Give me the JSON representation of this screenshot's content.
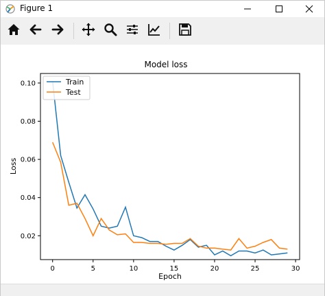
{
  "window": {
    "title": "Figure 1",
    "icon": "matplotlib-icon",
    "controls": [
      "minimize-icon",
      "maximize-icon",
      "close-icon"
    ]
  },
  "toolbar": {
    "tools": [
      {
        "name": "home-button",
        "icon": "home-icon"
      },
      {
        "name": "back-button",
        "icon": "arrow-left-icon"
      },
      {
        "name": "forward-button",
        "icon": "arrow-right-icon"
      },
      {
        "name": "pan-button",
        "icon": "move-icon"
      },
      {
        "name": "zoom-button",
        "icon": "magnifier-icon"
      },
      {
        "name": "subplots-button",
        "icon": "sliders-icon"
      },
      {
        "name": "edit-axis-button",
        "icon": "chart-line-icon"
      },
      {
        "name": "save-button",
        "icon": "floppy-disk-icon"
      }
    ]
  },
  "chart_data": {
    "type": "line",
    "title": "Model loss",
    "xlabel": "Epoch",
    "ylabel": "Loss",
    "xlim": [
      -1.5,
      30.5
    ],
    "ylim": [
      0.0075,
      0.105
    ],
    "xticks": [
      "0",
      "5",
      "10",
      "15",
      "20",
      "25",
      "30"
    ],
    "yticks": [
      "0.02",
      "0.04",
      "0.06",
      "0.08",
      "0.10"
    ],
    "xtick_values": [
      0,
      5,
      10,
      15,
      20,
      25,
      30
    ],
    "ytick_values": [
      0.02,
      0.04,
      0.06,
      0.08,
      0.1
    ],
    "legend_position": "top-left",
    "grid": false,
    "x": [
      0,
      1,
      2,
      3,
      4,
      5,
      6,
      7,
      8,
      9,
      10,
      11,
      12,
      13,
      14,
      15,
      16,
      17,
      18,
      19,
      20,
      21,
      22,
      23,
      24,
      25,
      26,
      27,
      28,
      29
    ],
    "series": [
      {
        "name": "Train",
        "color": "#1f77b4",
        "values": [
          0.101,
          0.062,
          0.048,
          0.0345,
          0.0415,
          0.034,
          0.025,
          0.024,
          0.025,
          0.035,
          0.02,
          0.019,
          0.017,
          0.017,
          0.0145,
          0.0125,
          0.015,
          0.018,
          0.014,
          0.015,
          0.01,
          0.012,
          0.0095,
          0.012,
          0.012,
          0.011,
          0.0125,
          0.01,
          0.0105,
          0.011
        ]
      },
      {
        "name": "Test",
        "color": "#ff7f0e",
        "values": [
          0.069,
          0.0585,
          0.036,
          0.037,
          0.029,
          0.02,
          0.029,
          0.023,
          0.0205,
          0.021,
          0.0165,
          0.0165,
          0.016,
          0.016,
          0.0155,
          0.016,
          0.016,
          0.0185,
          0.0145,
          0.0135,
          0.0135,
          0.013,
          0.0125,
          0.0185,
          0.0135,
          0.0145,
          0.0165,
          0.018,
          0.0135,
          0.013
        ]
      }
    ]
  }
}
